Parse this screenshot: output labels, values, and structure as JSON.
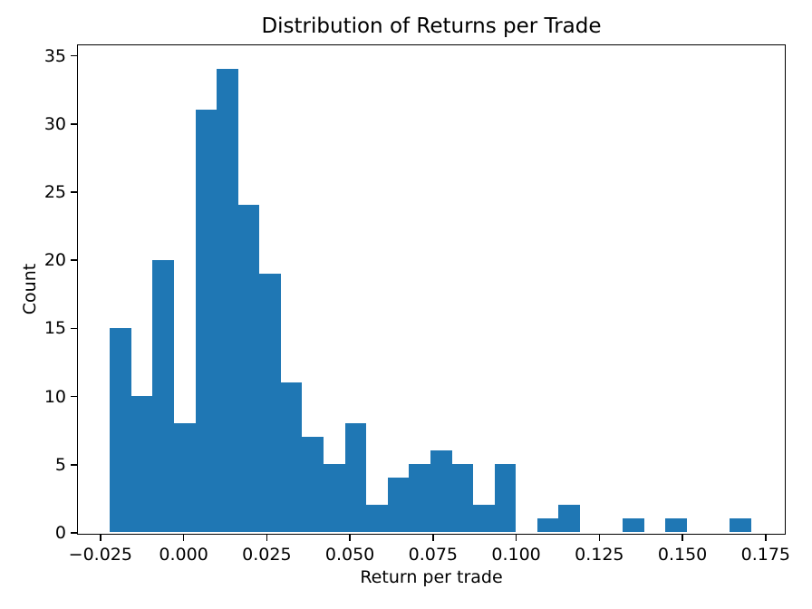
{
  "figure": {
    "title": "Distribution of Returns per Trade"
  },
  "chart_data": {
    "type": "bar",
    "subtype": "histogram",
    "title": "Distribution of Returns per Trade",
    "xlabel": "Return per trade",
    "ylabel": "Count",
    "bar_color": "#1f77b4",
    "axis_color": "#000000",
    "background_color": "#ffffff",
    "grid": false,
    "legend": null,
    "bin_start": -0.0219,
    "bin_width": 0.006426,
    "counts": [
      15,
      10,
      20,
      8,
      31,
      34,
      24,
      19,
      11,
      7,
      5,
      8,
      2,
      4,
      5,
      6,
      5,
      2,
      5,
      0,
      1,
      2,
      0,
      0,
      1,
      0,
      1,
      0,
      0,
      1
    ],
    "xlim": [
      -0.0315,
      0.1805
    ],
    "ylim": [
      0,
      35.7
    ],
    "xticks": [
      {
        "value": -0.025,
        "label": "−0.025"
      },
      {
        "value": 0.0,
        "label": "0.000"
      },
      {
        "value": 0.025,
        "label": "0.025"
      },
      {
        "value": 0.05,
        "label": "0.050"
      },
      {
        "value": 0.075,
        "label": "0.075"
      },
      {
        "value": 0.1,
        "label": "0.100"
      },
      {
        "value": 0.125,
        "label": "0.125"
      },
      {
        "value": 0.15,
        "label": "0.150"
      },
      {
        "value": 0.175,
        "label": "0.175"
      }
    ],
    "yticks": [
      {
        "value": 0,
        "label": "0"
      },
      {
        "value": 5,
        "label": "5"
      },
      {
        "value": 10,
        "label": "10"
      },
      {
        "value": 15,
        "label": "15"
      },
      {
        "value": 20,
        "label": "20"
      },
      {
        "value": 25,
        "label": "25"
      },
      {
        "value": 30,
        "label": "30"
      },
      {
        "value": 35,
        "label": "35"
      }
    ]
  }
}
